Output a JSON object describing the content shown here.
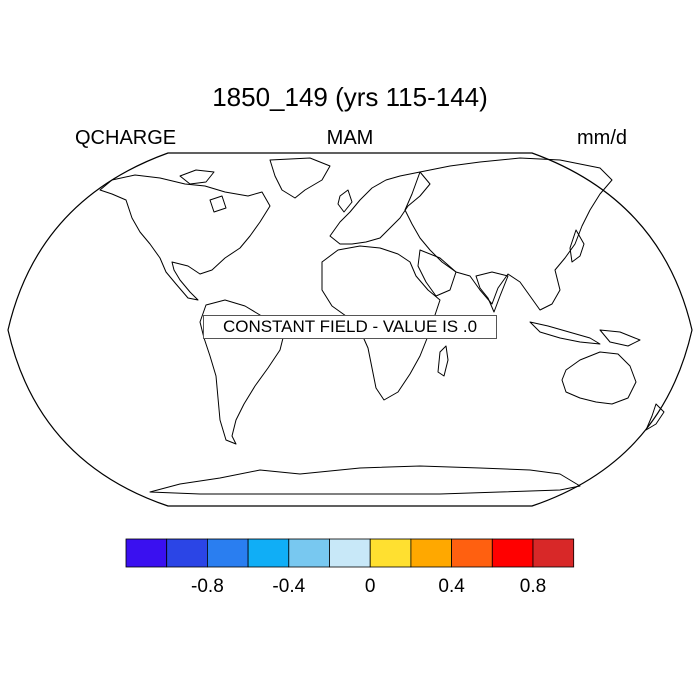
{
  "plot": {
    "title": "1850_149 (yrs 115-144)",
    "left_label": "QCHARGE",
    "center_label": "MAM",
    "right_label": "mm/d",
    "notice": "CONSTANT FIELD - VALUE IS .0"
  },
  "map": {
    "projection": "Robinson",
    "outline_color": "#000000",
    "coastline_color": "#000000"
  },
  "colorbar": {
    "colors": [
      "#3a10f0",
      "#2b45e6",
      "#2a7ef0",
      "#10aef6",
      "#78c8f0",
      "#c8e8f8",
      "#ffe030",
      "#ffa800",
      "#ff6010",
      "#ff0000",
      "#d82828"
    ],
    "tick_labels": [
      "-0.8",
      "-0.4",
      "0",
      "0.4",
      "0.8"
    ]
  }
}
